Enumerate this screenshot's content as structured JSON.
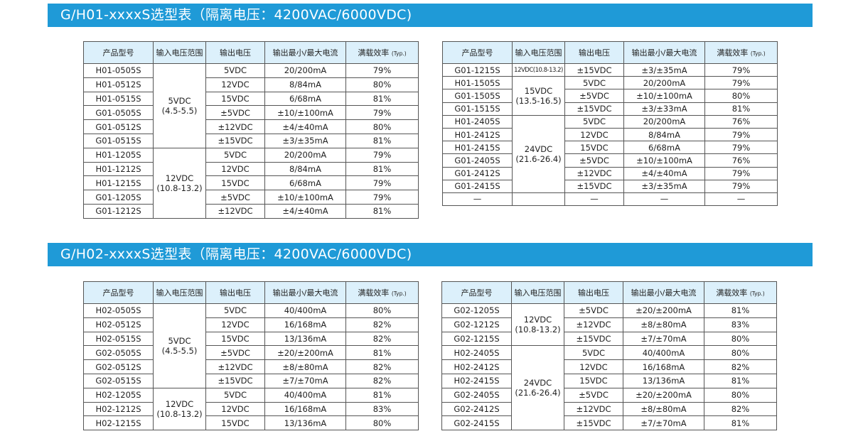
{
  "sections": [
    {
      "title": "G/H01-xxxxS选型表（隔离电压：4200VAC/6000VDC)",
      "tables": [
        {
          "headers": [
            "产品型号",
            "输入电压范围",
            "输出电压",
            "输出最小/最大电流",
            "满载效率",
            "(Typ.)"
          ],
          "rows": [
            {
              "model": "H01-0505S",
              "input": "5VDC\n(4.5-5.5)",
              "span": 6,
              "out": "5VDC",
              "cur": "20/200mA",
              "eff": "79%"
            },
            {
              "model": "H01-0512S",
              "out": "12VDC",
              "cur": "8/84mA",
              "eff": "80%"
            },
            {
              "model": "H01-0515S",
              "out": "15VDC",
              "cur": "6/68mA",
              "eff": "81%"
            },
            {
              "model": "G01-0505S",
              "out": "±5VDC",
              "cur": "±10/±100mA",
              "eff": "79%"
            },
            {
              "model": "G01-0512S",
              "out": "±12VDC",
              "cur": "±4/±40mA",
              "eff": "80%"
            },
            {
              "model": "G01-0515S",
              "out": "±15VDC",
              "cur": "±3/±35mA",
              "eff": "81%"
            },
            {
              "model": "H01-1205S",
              "input": "12VDC\n(10.8-13.2)",
              "span": 5,
              "out": "5VDC",
              "cur": "20/200mA",
              "eff": "79%"
            },
            {
              "model": "H01-1212S",
              "out": "12VDC",
              "cur": "8/84mA",
              "eff": "81%"
            },
            {
              "model": "H01-1215S",
              "out": "15VDC",
              "cur": "6/68mA",
              "eff": "79%"
            },
            {
              "model": "G01-1205S",
              "out": "±5VDC",
              "cur": "±10/±100mA",
              "eff": "79%"
            },
            {
              "model": "G01-1212S",
              "out": "±12VDC",
              "cur": "±4/±40mA",
              "eff": "81%"
            }
          ]
        },
        {
          "headers": [
            "产品型号",
            "输入电压范围",
            "输出电压",
            "输出最小/最大电流",
            "满载效率",
            "(Typ.)"
          ],
          "rows": [
            {
              "model": "G01-1215S",
              "input": "12VDC(10.8-13.2)",
              "span": 1,
              "small": true,
              "out": "±15VDC",
              "cur": "±3/±35mA",
              "eff": "79%"
            },
            {
              "model": "H01-1505S",
              "input": "15VDC\n(13.5-16.5)",
              "span": 3,
              "out": "5VDC",
              "cur": "20/200mA",
              "eff": "79%"
            },
            {
              "model": "G01-1505S",
              "out": "±5VDC",
              "cur": "±10/±100mA",
              "eff": "80%"
            },
            {
              "model": "G01-1515S",
              "out": "±15VDC",
              "cur": "±3/±33mA",
              "eff": "81%"
            },
            {
              "model": "H01-2405S",
              "input": "24VDC\n(21.6-26.4)",
              "span": 7,
              "out": "5VDC",
              "cur": "20/200mA",
              "eff": "76%"
            },
            {
              "model": "H01-2412S",
              "out": "12VDC",
              "cur": "8/84mA",
              "eff": "79%"
            },
            {
              "model": "H01-2415S",
              "out": "15VDC",
              "cur": "6/68mA",
              "eff": "79%"
            },
            {
              "model": "G01-2405S",
              "out": "±5VDC",
              "cur": "±10/±100mA",
              "eff": "76%"
            },
            {
              "model": "G01-2412S",
              "out": "±12VDC",
              "cur": "±4/±40mA",
              "eff": "79%"
            },
            {
              "model": "G01-2415S",
              "out": "±15VDC",
              "cur": "±3/±35mA",
              "eff": "79%"
            },
            {
              "model": "—",
              "out": "—",
              "cur": "—",
              "eff": "—"
            }
          ]
        }
      ]
    },
    {
      "title": "G/H02-xxxxS选型表（隔离电压：4200VAC/6000VDC)",
      "tables": [
        {
          "headers": [
            "产品型号",
            "输入电压范围",
            "输出电压",
            "输出最小/最大电流",
            "满载效率",
            "(Typ.)"
          ],
          "rows": [
            {
              "model": "H02-0505S",
              "input": "5VDC\n(4.5-5.5)",
              "span": 6,
              "out": "5VDC",
              "cur": "40/400mA",
              "eff": "80%"
            },
            {
              "model": "H02-0512S",
              "out": "12VDC",
              "cur": "16/168mA",
              "eff": "82%"
            },
            {
              "model": "H02-0515S",
              "out": "15VDC",
              "cur": "13/136mA",
              "eff": "82%"
            },
            {
              "model": "G02-0505S",
              "out": "±5VDC",
              "cur": "±20/±200mA",
              "eff": "81%"
            },
            {
              "model": "G02-0512S",
              "out": "±12VDC",
              "cur": "±8/±80mA",
              "eff": "82%"
            },
            {
              "model": "G02-0515S",
              "out": "±15VDC",
              "cur": "±7/±70mA",
              "eff": "82%"
            },
            {
              "model": "H02-1205S",
              "input": "12VDC\n(10.8-13.2)",
              "span": 3,
              "out": "5VDC",
              "cur": "40/400mA",
              "eff": "81%"
            },
            {
              "model": "H02-1212S",
              "out": "12VDC",
              "cur": "16/168mA",
              "eff": "83%"
            },
            {
              "model": "H02-1215S",
              "out": "15VDC",
              "cur": "13/136mA",
              "eff": "80%"
            }
          ]
        },
        {
          "headers": [
            "产品型号",
            "输入电压范围",
            "输出电压",
            "输出最小/最大电流",
            "满载效率",
            "(Typ.)"
          ],
          "rows": [
            {
              "model": "G02-1205S",
              "input": "12VDC\n(10.8-13.2)",
              "span": 3,
              "out": "±5VDC",
              "cur": "±20/±200mA",
              "eff": "81%"
            },
            {
              "model": "G02-1212S",
              "out": "±12VDC",
              "cur": "±8/±80mA",
              "eff": "83%"
            },
            {
              "model": "G02-1215S",
              "out": "±15VDC",
              "cur": "±7/±70mA",
              "eff": "80%"
            },
            {
              "model": "H02-2405S",
              "input": "24VDC\n(21.6-26.4)",
              "span": 6,
              "out": "5VDC",
              "cur": "40/400mA",
              "eff": "80%"
            },
            {
              "model": "H02-2412S",
              "out": "12VDC",
              "cur": "16/168mA",
              "eff": "82%"
            },
            {
              "model": "H02-2415S",
              "out": "15VDC",
              "cur": "13/136mA",
              "eff": "81%"
            },
            {
              "model": "G02-2405S",
              "out": "±5VDC",
              "cur": "±20/±200mA",
              "eff": "80%"
            },
            {
              "model": "G02-2412S",
              "out": "±12VDC",
              "cur": "±8/±80mA",
              "eff": "82%"
            },
            {
              "model": "G02-2415S",
              "out": "±15VDC",
              "cur": "±7/±70mA",
              "eff": "81%"
            }
          ]
        }
      ]
    }
  ],
  "colors": {
    "banner": "#1f9ad7",
    "header_bg": "#dcf0fb"
  }
}
